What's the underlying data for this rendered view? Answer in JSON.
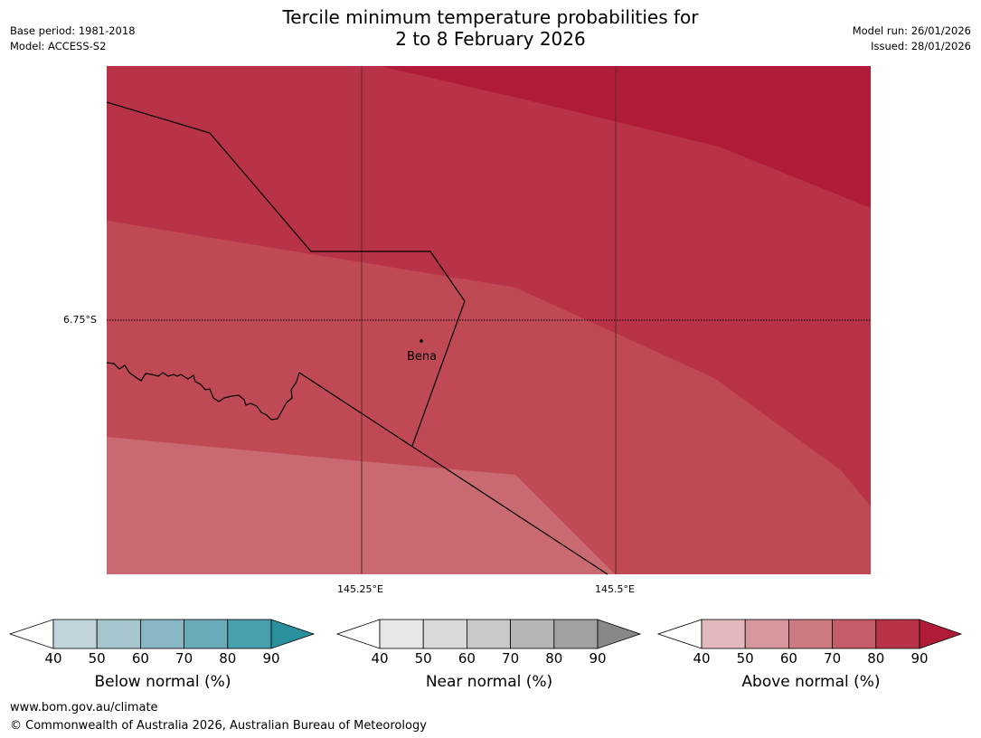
{
  "title": {
    "line1": "Tercile minimum temperature probabilities for",
    "line2": "2 to 8 February 2026"
  },
  "meta_left": {
    "base_period": "Base period: 1981-2018",
    "model": "Model: ACCESS-S2"
  },
  "meta_right": {
    "model_run": "Model run: 26/01/2026",
    "issued": "Issued: 28/01/2026"
  },
  "map": {
    "latitude_label": "6.75°S",
    "longitude_labels": [
      "145.25°E",
      "145.5°E"
    ],
    "town": "Bena",
    "region_colors": [
      "#b01c38",
      "#b83248",
      "#bf4a56",
      "#c96a73"
    ]
  },
  "legends": [
    {
      "name": "Below normal (%)",
      "ticks": [
        "40",
        "50",
        "60",
        "70",
        "80",
        "90"
      ],
      "colors": [
        "#bfd5db",
        "#a6c5cc",
        "#89b6c3",
        "#6aaab9",
        "#489fad",
        "#2b909e"
      ]
    },
    {
      "name": "Near normal (%)",
      "ticks": [
        "40",
        "50",
        "60",
        "70",
        "80",
        "90"
      ],
      "colors": [
        "#e6e6e6",
        "#d9d9d9",
        "#c8c8c8",
        "#b5b5b5",
        "#a0a0a0",
        "#888888"
      ]
    },
    {
      "name": "Above normal (%)",
      "ticks": [
        "40",
        "50",
        "60",
        "70",
        "80",
        "90"
      ],
      "colors": [
        "#e3b9be",
        "#d7959c",
        "#cd7a83",
        "#c45d69",
        "#b83248",
        "#b01c38"
      ]
    }
  ],
  "footer": {
    "url": "www.bom.gov.au/climate",
    "copyright": "© Commonwealth of Australia 2026, Australian Bureau of Meteorology"
  }
}
